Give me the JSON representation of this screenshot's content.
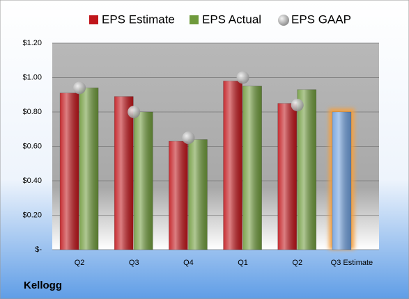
{
  "chart_data": {
    "type": "bar",
    "title": "Kellogg",
    "categories": [
      "Q2",
      "Q3",
      "Q4",
      "Q1",
      "Q2",
      "Q3 Estimate"
    ],
    "series": [
      {
        "name": "EPS Estimate",
        "color": "#c0161b",
        "values": [
          0.91,
          0.89,
          0.63,
          0.98,
          0.85,
          0.8
        ],
        "colors": [
          "#c0161b",
          "#c0161b",
          "#c0161b",
          "#c0161b",
          "#c0161b",
          "#6f9fdc"
        ]
      },
      {
        "name": "EPS Actual",
        "color": "#6f9a3c",
        "values": [
          0.94,
          0.8,
          0.64,
          0.95,
          0.93,
          null
        ]
      },
      {
        "name": "EPS GAAP",
        "color": "#b0b0b0",
        "marker": "circle",
        "values": [
          0.94,
          0.8,
          0.65,
          1.0,
          0.84,
          null
        ]
      }
    ],
    "ylim": [
      0,
      1.2
    ],
    "yticks": [
      {
        "value": 0,
        "label": "$-"
      },
      {
        "value": 0.2,
        "label": "$0.20"
      },
      {
        "value": 0.4,
        "label": "$0.40"
      },
      {
        "value": 0.6,
        "label": "$0.60"
      },
      {
        "value": 0.8,
        "label": "$0.80"
      },
      {
        "value": 1.0,
        "label": "$1.00"
      },
      {
        "value": 1.2,
        "label": "$1.20"
      }
    ],
    "grid": true
  }
}
